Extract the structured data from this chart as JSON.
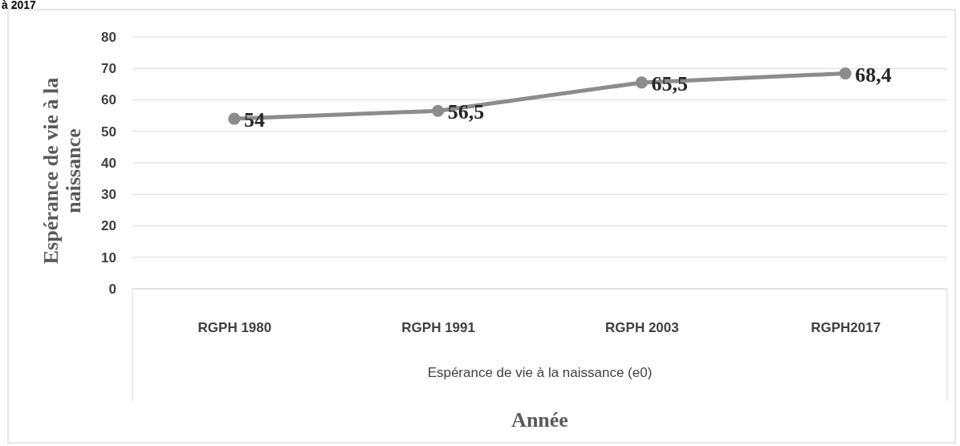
{
  "chart_data": {
    "type": "line",
    "xlabel": "Année",
    "ylabel": "Espérance de vie à la naissance",
    "annotations": [
      "à 2017",
      "Espérance de vie à la naissance (e0)"
    ],
    "categories": [
      "RGPH 1980",
      "RGPH 1991",
      "RGPH 2003",
      "RGPH2017"
    ],
    "series": [
      {
        "color": "#8c8c8c",
        "values": [
          54,
          56.5,
          65.5,
          68.4
        ],
        "value_labels": [
          "54",
          "56,5",
          "65,5",
          "68,4"
        ]
      }
    ],
    "ylim": [
      0,
      80
    ],
    "yticks": [
      0,
      10,
      20,
      30,
      40,
      50,
      60,
      70,
      80
    ],
    "grid": "y",
    "marker": "circle",
    "line_style": "solid"
  }
}
